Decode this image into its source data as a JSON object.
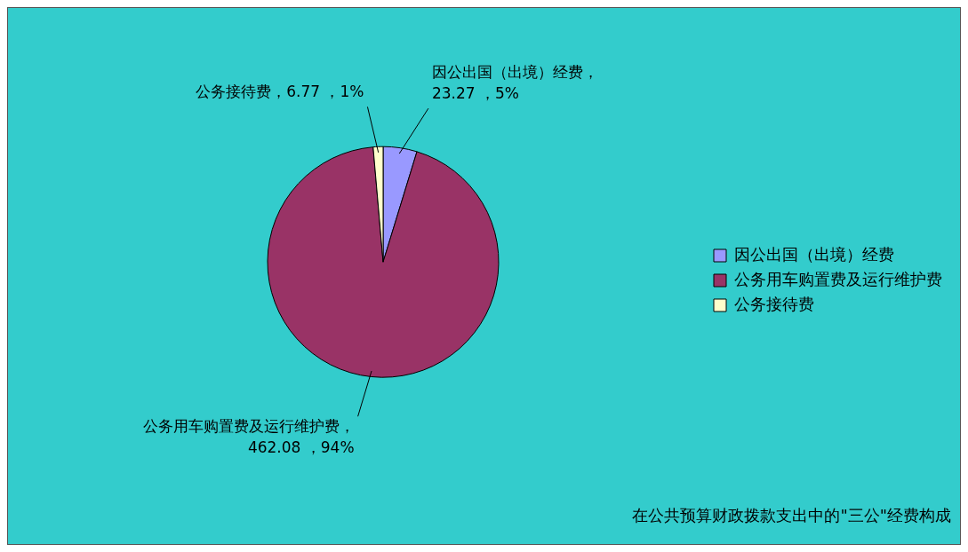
{
  "chart_data": {
    "type": "pie",
    "title": "在公共预算财政拨款支出中的\"三公\"经费构成",
    "categories": [
      "因公出国（出境）经费",
      "公务用车购置费及运行维护费",
      "公务接待费"
    ],
    "values": [
      23.27,
      462.08,
      6.77
    ],
    "colors": [
      "#9999ff",
      "#993366",
      "#ffffcc"
    ],
    "value_labels": [
      "因公出国（出境）经费，23.27 ，5%",
      "公务用车购置费及运行维护费，462.08 ，94%",
      "公务接待费，6.77 ，1%"
    ],
    "legend": "right"
  }
}
